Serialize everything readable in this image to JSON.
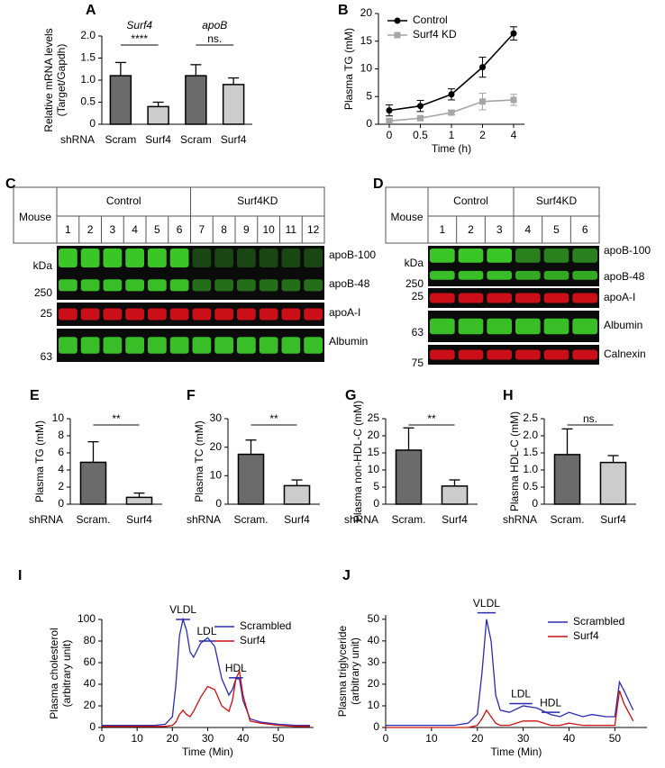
{
  "chart_data": [
    {
      "panel": "A",
      "type": "bar",
      "ylabel": [
        "Relative mRNA levels",
        "(Target/Gapdh)"
      ],
      "row_label": "shRNA",
      "categories": [
        "Scram",
        "Surf4",
        "Scram",
        "Surf4"
      ],
      "values": [
        1.1,
        0.4,
        1.1,
        0.9
      ],
      "errors": [
        0.3,
        0.1,
        0.25,
        0.15
      ],
      "colors": [
        "#6b6b6b",
        "#cccccc",
        "#6b6b6b",
        "#cccccc"
      ],
      "groups": [
        {
          "label": "Surf4",
          "sig": "****"
        },
        {
          "label": "apoB",
          "sig": "ns."
        }
      ],
      "ylim": [
        0,
        2
      ],
      "yticks": [
        0,
        0.5,
        {
          "value": 1,
          "label": "1.0"
        },
        1.5,
        {
          "value": 2,
          "label": "2.0"
        }
      ]
    },
    {
      "panel": "B",
      "type": "line",
      "ylabel": [
        "Plasma TG (mM)"
      ],
      "xlabel": "Time (h)",
      "legend": "upper left",
      "categories": [
        0,
        0.5,
        1,
        2,
        4
      ],
      "series": [
        {
          "name": "Control",
          "color": "#000000",
          "marker": "circle",
          "values": [
            2.5,
            3.3,
            5.4,
            10.3,
            16.4
          ],
          "errors": [
            1,
            1,
            1,
            1.8,
            1.2
          ]
        },
        {
          "name": "Surf4 KD",
          "color": "#a6a6a6",
          "marker": "square",
          "values": [
            0.6,
            1.1,
            2.1,
            4.1,
            4.4
          ],
          "errors": [
            0.3,
            0.3,
            0.4,
            1.5,
            1
          ]
        }
      ],
      "ylim": [
        0,
        20
      ],
      "yticks": [
        0,
        5,
        10,
        15,
        20
      ]
    },
    {
      "panel": "E",
      "type": "bar",
      "ylabel": [
        "Plasma TG (mM)"
      ],
      "row_label": "shRNA",
      "categories": [
        "Scram.",
        "Surf4"
      ],
      "values": [
        4.9,
        0.8
      ],
      "errors": [
        2.4,
        0.5
      ],
      "colors": [
        "#6b6b6b",
        "#cccccc"
      ],
      "groups": [
        {
          "sig": "**"
        }
      ],
      "ylim": [
        0,
        10
      ],
      "yticks": [
        0,
        2,
        4,
        6,
        8,
        10
      ]
    },
    {
      "panel": "F",
      "type": "bar",
      "ylabel": [
        "Plasma TC (mM)"
      ],
      "row_label": "shRNA",
      "categories": [
        "Scram.",
        "Surf4"
      ],
      "values": [
        17.5,
        6.5
      ],
      "errors": [
        5,
        2
      ],
      "colors": [
        "#6b6b6b",
        "#cccccc"
      ],
      "groups": [
        {
          "sig": "**"
        }
      ],
      "ylim": [
        0,
        30
      ],
      "yticks": [
        0,
        10,
        20,
        30
      ]
    },
    {
      "panel": "G",
      "type": "bar",
      "ylabel": [
        "Plasma non-HDL-C (mM)"
      ],
      "row_label": "shRNA",
      "categories": [
        "Scram.",
        "Surf4"
      ],
      "values": [
        15.8,
        5.3
      ],
      "errors": [
        6.5,
        1.8
      ],
      "colors": [
        "#6b6b6b",
        "#cccccc"
      ],
      "groups": [
        {
          "sig": "**"
        }
      ],
      "ylim": [
        0,
        25
      ],
      "yticks": [
        0,
        5,
        10,
        15,
        20,
        25
      ]
    },
    {
      "panel": "H",
      "type": "bar",
      "ylabel": [
        "Plasma HDL-C (mM)"
      ],
      "row_label": "shRNA",
      "categories": [
        "Scram.",
        "Surf4"
      ],
      "values": [
        1.45,
        1.22
      ],
      "errors": [
        0.75,
        0.2
      ],
      "colors": [
        "#6b6b6b",
        "#cccccc"
      ],
      "groups": [
        {
          "sig": "ns."
        }
      ],
      "ylim": [
        0,
        2.5
      ],
      "yticks": [
        0,
        0.5,
        {
          "value": 1,
          "label": "1.0"
        },
        1.5,
        {
          "value": 2,
          "label": "2.0"
        },
        2.5
      ]
    },
    {
      "panel": "I",
      "type": "line",
      "ylabel": [
        "Plasma cholesterol",
        "(arbitrary unit)"
      ],
      "xlabel": "Time (Min)",
      "legend": "upper right",
      "x": [
        0,
        5,
        10,
        15,
        18,
        20,
        21,
        22,
        23,
        24,
        25,
        26,
        28,
        30,
        32,
        34,
        36,
        37,
        38,
        39,
        40,
        42,
        45,
        50,
        55,
        59
      ],
      "series": [
        {
          "name": "Scrambled",
          "color": "#2b2bb0",
          "values": [
            2,
            2,
            2,
            2,
            3,
            10,
            40,
            85,
            100,
            90,
            70,
            65,
            78,
            83,
            75,
            45,
            30,
            35,
            45,
            45,
            25,
            8,
            5,
            3,
            2,
            2
          ]
        },
        {
          "name": "Surf4",
          "color": "#cc1111",
          "values": [
            1,
            1,
            1,
            1,
            1,
            2,
            5,
            12,
            16,
            12,
            10,
            15,
            28,
            38,
            35,
            20,
            15,
            25,
            45,
            52,
            30,
            6,
            4,
            2,
            1,
            1
          ]
        }
      ],
      "annotations": [
        {
          "text": "VLDL",
          "x": [
            21,
            25
          ],
          "y": 100
        },
        {
          "text": "LDL",
          "x": [
            27.5,
            32
          ],
          "y": 80
        },
        {
          "text": "HDL",
          "x": [
            36,
            40
          ],
          "y": 46
        }
      ],
      "xlim": [
        0,
        60
      ],
      "xticks": [
        0,
        10,
        20,
        30,
        40,
        50
      ],
      "ylim": [
        0,
        100
      ],
      "yticks": [
        0,
        20,
        40,
        60,
        80,
        100
      ]
    },
    {
      "panel": "J",
      "type": "line",
      "ylabel": [
        "Plasma triglyceride",
        "(arbitrary unit)"
      ],
      "xlabel": "Time (Min)",
      "legend": "upper right",
      "x": [
        0,
        5,
        10,
        15,
        18,
        20,
        21,
        22,
        23,
        24,
        25,
        27,
        30,
        33,
        36,
        38,
        40,
        43,
        45,
        48,
        50,
        51,
        52,
        54
      ],
      "series": [
        {
          "name": "Scrambled",
          "color": "#2b2bb0",
          "values": [
            1,
            1,
            1,
            1,
            2,
            6,
            25,
            50,
            40,
            15,
            8,
            7,
            10,
            9,
            6,
            5,
            7,
            5,
            6,
            5,
            5,
            21,
            17,
            8
          ]
        },
        {
          "name": "Surf4",
          "color": "#cc1111",
          "values": [
            0,
            0,
            0,
            0,
            0,
            1,
            4,
            8,
            5,
            2,
            1,
            1,
            3,
            3,
            1,
            1,
            2,
            1,
            1,
            1,
            1,
            17,
            11,
            3
          ]
        }
      ],
      "annotations": [
        {
          "text": "VLDL",
          "x": [
            20,
            24
          ],
          "y": 53
        },
        {
          "text": "LDL",
          "x": [
            27,
            32
          ],
          "y": 11
        },
        {
          "text": "HDL",
          "x": [
            34,
            38
          ],
          "y": 7
        }
      ],
      "xlim": [
        0,
        57
      ],
      "xticks": [
        0,
        10,
        20,
        30,
        40,
        50
      ],
      "ylim": [
        0,
        52
      ],
      "yticks": [
        0,
        10,
        20,
        30,
        40,
        50
      ]
    }
  ],
  "blots": [
    {
      "panel": "C",
      "row_label": "Mouse",
      "groups": [
        "Control",
        "Surf4KD"
      ],
      "lanes": [
        1,
        2,
        3,
        4,
        5,
        6,
        7,
        8,
        9,
        10,
        11,
        12
      ],
      "unit": "kDa",
      "markers": [
        "250",
        "25",
        "63"
      ],
      "bands": [
        "apoB-100",
        "apoB-48",
        "apoA-I",
        "Albumin"
      ]
    },
    {
      "panel": "D",
      "row_label": "Mouse",
      "groups": [
        "Control",
        "Surf4KD"
      ],
      "lanes": [
        1,
        2,
        3,
        4,
        5,
        6
      ],
      "unit": "kDa",
      "markers": [
        "250",
        "25",
        "63",
        "75"
      ],
      "bands": [
        "apoB-100",
        "apoB-48",
        "apoA-I",
        "Albumin",
        "Calnexin"
      ]
    }
  ]
}
